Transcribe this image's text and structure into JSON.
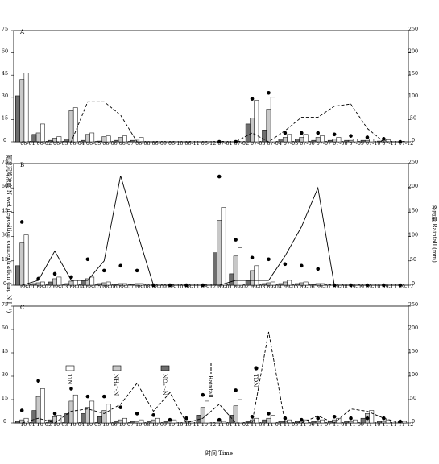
{
  "figure": {
    "ylabel_left": "氮湿沉降浓度 N wet deposition concentration (mg N L⁻¹)",
    "ylabel_right": "降雨量 Rainfall (mm)",
    "xlabel": "时间 Time",
    "legend": [
      "TIN",
      "NH₄⁺-N",
      "NO₃⁻-N",
      "Rainfall",
      "TDN"
    ]
  },
  "chart_data": [
    {
      "type": "bar",
      "panel_label": "A",
      "categories": [
        "06-01",
        "06-02",
        "06-03",
        "06-04",
        "06-05",
        "06-06",
        "06-07",
        "06-08",
        "06-09",
        "06-10",
        "06-11",
        "06-12",
        "07-01",
        "07-02",
        "07-03",
        "07-04",
        "07-05",
        "07-06",
        "07-07",
        "07-08",
        "07-09",
        "07-10",
        "07-11",
        "07-12"
      ],
      "series": [
        {
          "name": "TIN",
          "values": [
            46.5,
            12,
            3.5,
            23,
            6,
            4,
            4,
            3,
            0,
            0,
            0,
            0,
            0,
            0,
            28,
            30,
            5,
            5,
            4,
            3,
            2,
            2,
            1.5,
            0
          ]
        },
        {
          "name": "NH₄⁺-N",
          "values": [
            42,
            6,
            2.5,
            21,
            5,
            3.5,
            3,
            2,
            0,
            0,
            0,
            0,
            0,
            0,
            16,
            22,
            3,
            3,
            3,
            2,
            1,
            1,
            1,
            0
          ]
        },
        {
          "name": "NO₃⁻-N",
          "values": [
            31,
            5,
            1,
            2,
            1,
            0.5,
            1,
            1,
            0,
            0,
            0,
            0,
            0,
            0,
            12,
            8,
            2,
            2,
            1,
            1,
            1,
            1,
            0.5,
            0
          ]
        },
        {
          "name": "TDN",
          "values": [
            null,
            null,
            null,
            null,
            null,
            null,
            null,
            null,
            null,
            null,
            null,
            null,
            0,
            0,
            29,
            33,
            6,
            6,
            6,
            5,
            4,
            3,
            2,
            0
          ]
        },
        {
          "name": "Rainfall",
          "values": [
            0,
            0,
            0,
            0,
            90,
            90,
            60,
            0,
            0,
            0,
            0,
            0,
            0,
            0,
            20,
            0,
            25,
            55,
            55,
            80,
            85,
            30,
            0,
            0
          ]
        }
      ],
      "ylim": [
        0,
        75
      ],
      "y2lim": [
        0,
        250
      ]
    },
    {
      "type": "bar",
      "panel_label": "B",
      "categories": [
        "08-01",
        "08-02",
        "08-03",
        "08-04",
        "08-05",
        "08-06",
        "08-07",
        "08-08",
        "08-09",
        "08-10",
        "08-11",
        "08-12",
        "09-01",
        "09-02",
        "09-03",
        "09-04",
        "09-05",
        "09-06",
        "09-07",
        "09-08",
        "09-09",
        "09-10",
        "09-11",
        "09-12"
      ],
      "series": [
        {
          "name": "TIN",
          "values": [
            31,
            2,
            5,
            3,
            5,
            2,
            1,
            1,
            0,
            0,
            0,
            0,
            48,
            23,
            12,
            2,
            3,
            2,
            1,
            0,
            0,
            0,
            0,
            0
          ]
        },
        {
          "name": "NH₄⁺-N",
          "values": [
            26,
            1.5,
            4,
            2.5,
            4,
            1.5,
            1,
            1,
            0,
            0,
            0,
            0,
            40,
            18,
            9,
            1.5,
            2,
            1.5,
            1,
            0,
            0,
            0,
            0,
            0
          ]
        },
        {
          "name": "NO₃⁻-N",
          "values": [
            12,
            1,
            2,
            1,
            3,
            1,
            0.5,
            0.5,
            0,
            0,
            0,
            0,
            20,
            7,
            3,
            1,
            1,
            1,
            0.5,
            0,
            0,
            0,
            0,
            0
          ]
        },
        {
          "name": "TDN",
          "values": [
            39,
            4,
            7,
            5,
            16,
            9,
            12,
            9,
            0,
            0,
            0,
            0,
            67,
            28,
            17,
            16,
            13,
            12,
            10,
            0,
            0,
            0,
            0,
            0
          ]
        },
        {
          "name": "Rainfall",
          "values": [
            0,
            10,
            70,
            10,
            10,
            50,
            225,
            110,
            0,
            0,
            0,
            0,
            0,
            10,
            10,
            10,
            60,
            120,
            200,
            0,
            0,
            0,
            0,
            0
          ]
        }
      ],
      "ylim": [
        0,
        75
      ],
      "y2lim": [
        0,
        250
      ]
    },
    {
      "type": "bar",
      "panel_label": "C",
      "categories": [
        "10-01",
        "10-02",
        "10-03",
        "10-04",
        "10-05",
        "10-06",
        "10-07",
        "10-08",
        "10-09",
        "10-10",
        "10-11",
        "10-12",
        "11-01",
        "11-02",
        "11-03",
        "11-04",
        "11-05",
        "11-06",
        "11-07",
        "11-08",
        "11-09",
        "11-10",
        "11-11",
        "11-12"
      ],
      "series": [
        {
          "name": "TIN",
          "values": [
            3,
            22,
            5,
            18,
            14,
            12,
            3,
            2,
            3,
            2,
            1,
            14,
            1,
            15,
            3,
            5,
            2,
            2,
            2,
            3,
            2,
            8,
            2,
            1
          ]
        },
        {
          "name": "NH₄⁺-N",
          "values": [
            2,
            17,
            4,
            14,
            10,
            8,
            2,
            1,
            2,
            1,
            1,
            10,
            1,
            11,
            2,
            3,
            1,
            1,
            1,
            2,
            1,
            6,
            1,
            1
          ]
        },
        {
          "name": "NO₃⁻-N",
          "values": [
            1,
            8,
            2,
            6,
            6,
            4,
            1,
            1,
            1,
            1,
            0,
            5,
            0,
            5,
            1,
            2,
            1,
            1,
            1,
            1,
            1,
            3,
            1,
            0
          ]
        },
        {
          "name": "TDN",
          "values": [
            8,
            27,
            6,
            22,
            17,
            17,
            10,
            6,
            5,
            2,
            3,
            18,
            2,
            21,
            4,
            6,
            3,
            2,
            3,
            4,
            3,
            3,
            3,
            1
          ]
        },
        {
          "name": "Rainfall",
          "values": [
            0,
            10,
            0,
            25,
            30,
            20,
            40,
            85,
            25,
            65,
            0,
            10,
            40,
            0,
            0,
            195,
            0,
            0,
            15,
            0,
            30,
            25,
            10,
            0
          ]
        }
      ],
      "ylim": [
        0,
        75
      ],
      "y2lim": [
        0,
        250
      ]
    }
  ]
}
